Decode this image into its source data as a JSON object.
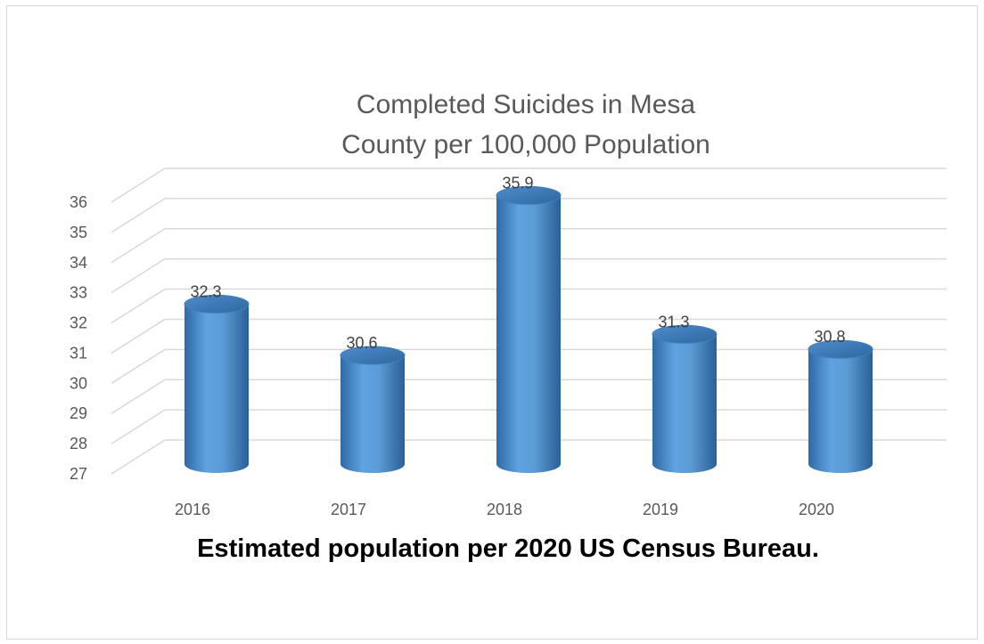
{
  "chart_data": {
    "type": "bar",
    "title": "Completed Suicides in Mesa County per 100,000 Population",
    "title_lines": [
      "Completed Suicides in Mesa",
      "County per 100,000 Population"
    ],
    "categories": [
      "2016",
      "2017",
      "2018",
      "2019",
      "2020"
    ],
    "values": [
      32.3,
      30.6,
      35.9,
      31.3,
      30.8
    ],
    "data_labels": [
      "32.3",
      "30.6",
      "35.9",
      "31.3",
      "30.8"
    ],
    "xlabel": "",
    "ylabel": "",
    "ylim": [
      27,
      36
    ],
    "yticks": [
      "27",
      "28",
      "29",
      "30",
      "31",
      "32",
      "33",
      "34",
      "35",
      "36"
    ],
    "grid": true,
    "style": "3d-cylinder",
    "bar_color": "#5b9bd5",
    "caption": "Estimated population per 2020 US Census Bureau."
  }
}
